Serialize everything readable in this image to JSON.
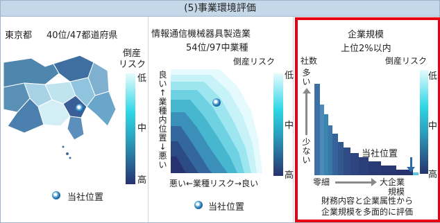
{
  "header": {
    "title": "(5)事業環境評価"
  },
  "prefecture_panel": {
    "prefecture": "東京都",
    "rank": "40位/47都道府県",
    "risk_label_1": "倒産",
    "risk_label_2": "リスク",
    "scale_low": "低",
    "scale_mid": "中",
    "scale_high": "高",
    "legend": "当社位置"
  },
  "industry_panel": {
    "industry": "情報通信機械器具製造業",
    "rank": "54位/97中業種",
    "risk_label": "倒産リスク",
    "y_axis": "良い↑業種内位置↓悪い",
    "x_axis": "悪い←業種リスク→良い",
    "scale_low": "低",
    "scale_mid": "中",
    "scale_high": "高",
    "legend": "当社位置"
  },
  "size_panel": {
    "title": "企業規模",
    "rank": "上位2%以内",
    "count_label": "社数",
    "risk_label": "倒産リスク",
    "y_top": "多い",
    "y_bottom": "少ない",
    "company_position": "当社位置",
    "x_left": "零細",
    "x_right_1": "大企業",
    "x_right_2": "規模",
    "note_1": "財務内容と企業属性から",
    "note_2": "企業規模を多面的に評価",
    "scale_low": "低",
    "scale_mid": "中",
    "scale_high": "高"
  },
  "colors": {
    "header_bg": "#c5d8ea",
    "highlight_border": "#e60012",
    "risk_low": "#e6fbfd",
    "risk_high": "#27336e"
  }
}
